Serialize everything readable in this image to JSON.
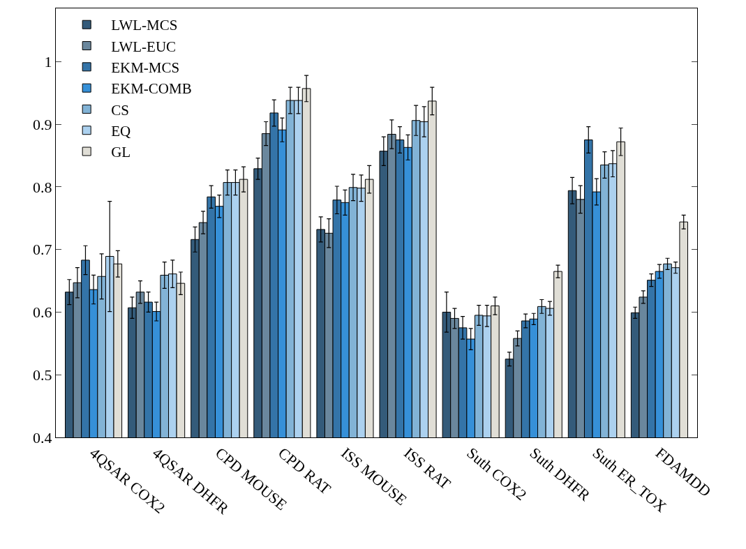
{
  "chart_data": {
    "type": "bar",
    "categories": [
      "4QSAR COX2",
      "4QSAR DHFR",
      "CPD MOUSE",
      "CPD RAT",
      "ISS MOUSE",
      "ISS RAT",
      "Suth COX2",
      "Suth DHFR",
      "Suth ER_TOX",
      "FDAMDD"
    ],
    "ylim": [
      0.4,
      1.085
    ],
    "yticks": [
      0.4,
      0.5,
      0.6,
      0.7,
      0.8,
      0.9,
      1
    ],
    "legend": "top left",
    "series": [
      {
        "name": "LWL-MCS",
        "color": "#345b7a",
        "values": [
          0.632,
          0.607,
          0.716,
          0.829,
          0.732,
          0.857,
          0.6,
          0.525,
          0.794,
          0.599
        ],
        "errors": [
          0.02,
          0.017,
          0.02,
          0.017,
          0.02,
          0.023,
          0.032,
          0.011,
          0.021,
          0.009
        ]
      },
      {
        "name": "LWL-EUC",
        "color": "#6a879d",
        "values": [
          0.647,
          0.632,
          0.743,
          0.885,
          0.726,
          0.884,
          0.59,
          0.558,
          0.78,
          0.624
        ],
        "errors": [
          0.024,
          0.018,
          0.018,
          0.019,
          0.023,
          0.023,
          0.016,
          0.012,
          0.022,
          0.01
        ]
      },
      {
        "name": "EKM-MCS",
        "color": "#3474a8",
        "values": [
          0.683,
          0.616,
          0.784,
          0.918,
          0.779,
          0.875,
          0.575,
          0.586,
          0.875,
          0.651
        ],
        "errors": [
          0.023,
          0.016,
          0.018,
          0.021,
          0.022,
          0.021,
          0.018,
          0.011,
          0.021,
          0.01
        ]
      },
      {
        "name": "EKM-COMB",
        "color": "#3690d8",
        "values": [
          0.636,
          0.601,
          0.769,
          0.891,
          0.775,
          0.863,
          0.557,
          0.589,
          0.792,
          0.665
        ],
        "errors": [
          0.023,
          0.015,
          0.018,
          0.019,
          0.02,
          0.02,
          0.017,
          0.009,
          0.021,
          0.011
        ]
      },
      {
        "name": "CS",
        "color": "#82b3d6",
        "values": [
          0.657,
          0.659,
          0.807,
          0.938,
          0.799,
          0.906,
          0.595,
          0.609,
          0.835,
          0.677
        ],
        "errors": [
          0.036,
          0.021,
          0.02,
          0.021,
          0.021,
          0.024,
          0.016,
          0.011,
          0.021,
          0.009
        ]
      },
      {
        "name": "EQ",
        "color": "#acd1ef",
        "values": [
          0.689,
          0.661,
          0.807,
          0.938,
          0.798,
          0.904,
          0.594,
          0.606,
          0.837,
          0.671
        ],
        "errors": [
          0.088,
          0.022,
          0.02,
          0.021,
          0.021,
          0.024,
          0.017,
          0.011,
          0.021,
          0.009
        ]
      },
      {
        "name": "GL",
        "color": "#e0ded6",
        "values": [
          0.677,
          0.646,
          0.812,
          0.957,
          0.812,
          0.937,
          0.61,
          0.665,
          0.872,
          0.744
        ],
        "errors": [
          0.021,
          0.018,
          0.02,
          0.021,
          0.022,
          0.022,
          0.014,
          0.01,
          0.022,
          0.011
        ]
      }
    ]
  }
}
